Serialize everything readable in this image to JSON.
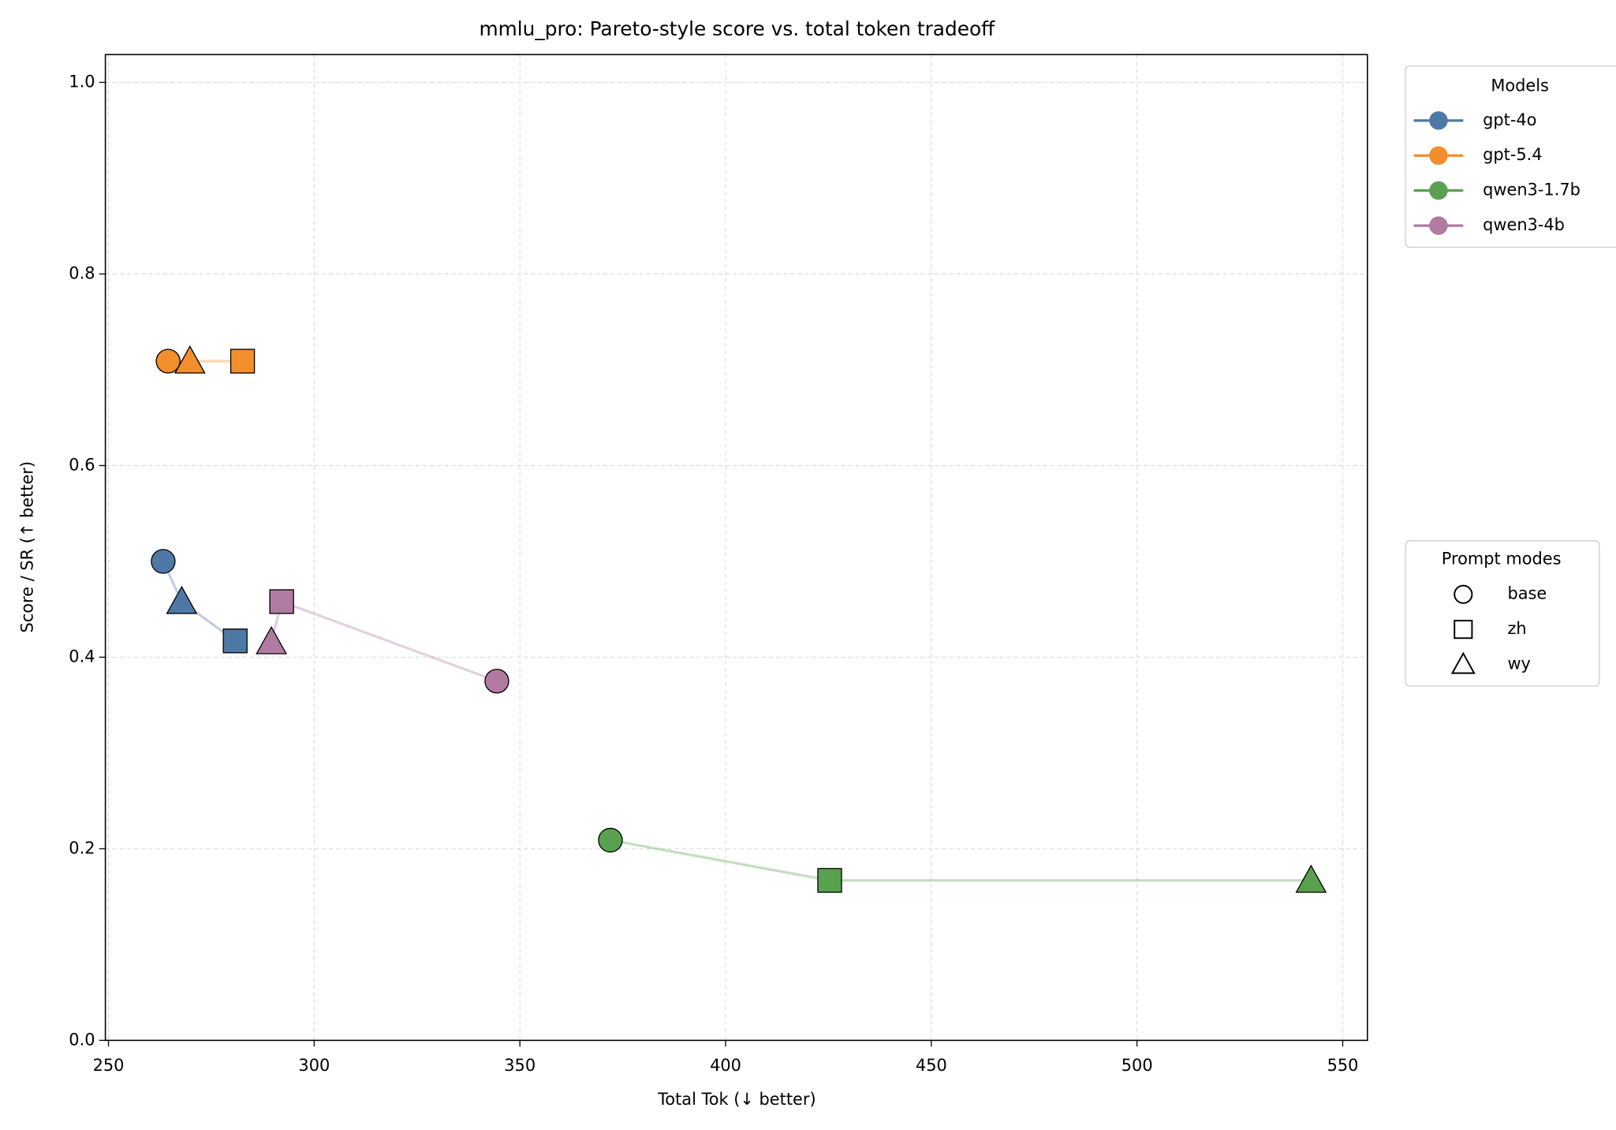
{
  "chart_data": {
    "type": "scatter",
    "title": "mmlu_pro: Pareto-style score vs. total token tradeoff",
    "x_label": "Total Tok (↓ better)",
    "y_label": "Score / SR (↑ better)",
    "xlim": [
      249.25,
      556.0
    ],
    "ylim": [
      0,
      1.029
    ],
    "xticks": [
      250,
      300,
      350,
      400,
      450,
      500,
      550
    ],
    "yticks": [
      {
        "value": 0,
        "label": "0.0"
      },
      0.2,
      0.4,
      0.6,
      0.8,
      {
        "value": 1,
        "label": "1.0"
      }
    ],
    "grid": true,
    "legend_title": "Models",
    "series": [
      {
        "name": "gpt-4o",
        "color": "#4e79a7",
        "x": [
          263.3,
          267.8,
          280.8
        ],
        "values": [
          0.5,
          0.458,
          0.417
        ],
        "markers": [
          "circle",
          "triangle",
          "square"
        ]
      },
      {
        "name": "gpt-5.4",
        "color": "#f28e2b",
        "x": [
          264.5,
          269.8,
          282.6
        ],
        "values": [
          0.709,
          0.709,
          0.709
        ],
        "markers": [
          "circle",
          "triangle",
          "square"
        ]
      },
      {
        "name": "qwen3-1.7b",
        "color": "#59a14f",
        "x": [
          372.0,
          425.3,
          542.3
        ],
        "values": [
          0.209,
          0.167,
          0.167
        ],
        "markers": [
          "circle",
          "square",
          "triangle"
        ]
      },
      {
        "name": "qwen3-4b",
        "color": "#b07aa1",
        "x": [
          289.6,
          292.1,
          344.4
        ],
        "values": [
          0.416,
          0.458,
          0.375
        ],
        "markers": [
          "triangle",
          "square",
          "circle"
        ]
      }
    ],
    "prompt_modes": {
      "title": "Prompt modes",
      "items": [
        {
          "label": "base",
          "marker": "circle"
        },
        {
          "label": "zh",
          "marker": "square"
        },
        {
          "label": "wy",
          "marker": "triangle"
        }
      ]
    }
  }
}
